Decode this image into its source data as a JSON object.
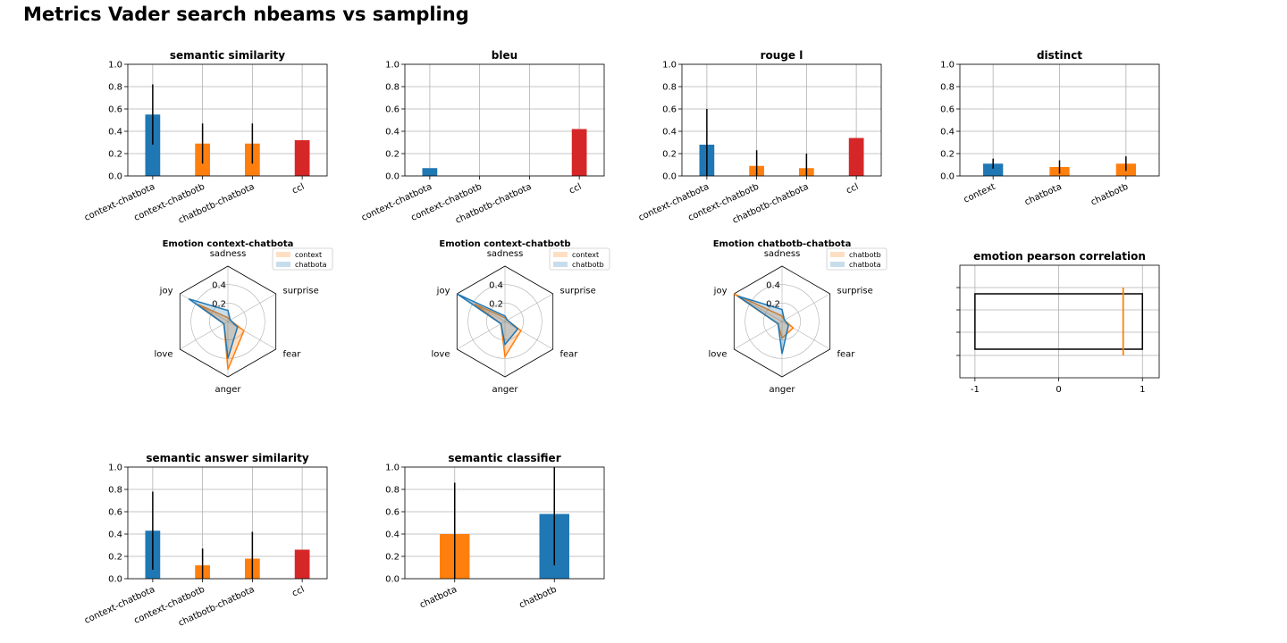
{
  "page": {
    "title": "Metrics Vader search nbeams vs sampling"
  },
  "colors": {
    "blue": "#1f77b4",
    "orange": "#ff7f0e",
    "red": "#d62728",
    "grid": "#b0b0b0",
    "axis": "#000000"
  },
  "chart_data": [
    {
      "id": "semantic-similarity",
      "type": "bar",
      "title": "semantic similarity",
      "categories": [
        "context-chatbota",
        "context-chatbotb",
        "chatbotb-chatbota",
        "ccl"
      ],
      "values": [
        0.55,
        0.29,
        0.29,
        0.32
      ],
      "errors": [
        0.27,
        0.18,
        0.18,
        null
      ],
      "colors": [
        "blue",
        "orange",
        "orange",
        "red"
      ],
      "ylim": [
        0,
        1.0
      ],
      "yticks": [
        0,
        0.2,
        0.4,
        0.6,
        0.8,
        1.0
      ],
      "ytick_labels": [
        "0.0",
        "0.2",
        "0.4",
        "0.6",
        "0.8",
        "1.0"
      ],
      "grid": true
    },
    {
      "id": "bleu",
      "type": "bar",
      "title": "bleu",
      "categories": [
        "context-chatbota",
        "context-chatbotb",
        "chatbotb-chatbota",
        "ccl"
      ],
      "values": [
        0.07,
        0.0,
        0.0,
        0.42
      ],
      "errors": [
        null,
        null,
        null,
        null
      ],
      "colors": [
        "blue",
        "orange",
        "orange",
        "red"
      ],
      "ylim": [
        0,
        1.0
      ],
      "yticks": [
        0,
        0.2,
        0.4,
        0.6,
        0.8,
        1.0
      ],
      "ytick_labels": [
        "0.0",
        "0.2",
        "0.4",
        "0.6",
        "0.8",
        "1.0"
      ],
      "grid": true
    },
    {
      "id": "rouge-l",
      "type": "bar",
      "title": "rouge l",
      "categories": [
        "context-chatbota",
        "context-chatbotb",
        "chatbotb-chatbota",
        "ccl"
      ],
      "values": [
        0.28,
        0.09,
        0.07,
        0.34
      ],
      "errors": [
        0.32,
        0.14,
        0.13,
        null
      ],
      "colors": [
        "blue",
        "orange",
        "orange",
        "red"
      ],
      "ylim": [
        0,
        1.0
      ],
      "yticks": [
        0,
        0.2,
        0.4,
        0.6,
        0.8,
        1.0
      ],
      "ytick_labels": [
        "0.0",
        "0.2",
        "0.4",
        "0.6",
        "0.8",
        "1.0"
      ],
      "grid": true
    },
    {
      "id": "distinct",
      "type": "bar",
      "title": "distinct",
      "categories": [
        "context",
        "chatbota",
        "chatbotb"
      ],
      "values": [
        0.11,
        0.08,
        0.11
      ],
      "errors": [
        0.045,
        0.06,
        0.065
      ],
      "colors": [
        "blue",
        "orange",
        "orange"
      ],
      "ylim": [
        0,
        1.0
      ],
      "yticks": [
        0,
        0.2,
        0.4,
        0.6,
        0.8,
        1.0
      ],
      "ytick_labels": [
        "0.0",
        "0.2",
        "0.4",
        "0.6",
        "0.8",
        "1.0"
      ],
      "grid": true
    },
    {
      "id": "emotion-context-chatbota",
      "type": "radar",
      "title": "Emotion context-chatbota",
      "axes": [
        "sadness",
        "surprise",
        "fear",
        "anger",
        "love",
        "joy"
      ],
      "rmax": 0.6,
      "rticks": [
        0.2,
        0.4
      ],
      "rtick_labels": [
        "0.2",
        "0.4"
      ],
      "series": [
        {
          "name": "context",
          "color": "orange",
          "values": [
            0.04,
            0.03,
            0.2,
            0.52,
            0.05,
            0.37
          ]
        },
        {
          "name": "chatbota",
          "color": "blue",
          "values": [
            0.12,
            0.03,
            0.12,
            0.4,
            0.05,
            0.49
          ]
        }
      ],
      "legend": "upper-right"
    },
    {
      "id": "emotion-context-chatbotb",
      "type": "radar",
      "title": "Emotion context-chatbotb",
      "axes": [
        "sadness",
        "surprise",
        "fear",
        "anger",
        "love",
        "joy"
      ],
      "rmax": 0.6,
      "rticks": [
        0.2,
        0.4
      ],
      "rtick_labels": [
        "0.2",
        "0.4"
      ],
      "series": [
        {
          "name": "context",
          "color": "orange",
          "values": [
            0.04,
            0.03,
            0.2,
            0.38,
            0.05,
            0.38
          ]
        },
        {
          "name": "chatbotb",
          "color": "blue",
          "values": [
            0.06,
            0.03,
            0.16,
            0.25,
            0.05,
            0.6
          ]
        }
      ],
      "legend": "upper-right"
    },
    {
      "id": "emotion-chatbotb-chatbota",
      "type": "radar",
      "title": "Emotion chatbotb-chatbota",
      "axes": [
        "sadness",
        "surprise",
        "fear",
        "anger",
        "love",
        "joy"
      ],
      "rmax": 0.6,
      "rticks": [
        0.2,
        0.4
      ],
      "rtick_labels": [
        "0.2",
        "0.4"
      ],
      "series": [
        {
          "name": "chatbotb",
          "color": "orange",
          "values": [
            0.06,
            0.03,
            0.14,
            0.18,
            0.05,
            0.6
          ]
        },
        {
          "name": "chatbota",
          "color": "blue",
          "values": [
            0.13,
            0.03,
            0.08,
            0.35,
            0.05,
            0.55
          ]
        }
      ],
      "legend": "upper-right"
    },
    {
      "id": "emotion-pearson-correlation",
      "type": "boxplot",
      "title": "emotion pearson correlation",
      "orientation": "horizontal",
      "xlim": [
        -1.18,
        1.2
      ],
      "xticks": [
        -1,
        0,
        1
      ],
      "xtick_labels": [
        "-1",
        "0",
        "1"
      ],
      "box": {
        "q1": -1.0,
        "q3": 1.0,
        "median": 0.77
      },
      "grid": true
    },
    {
      "id": "semantic-answer-similarity",
      "type": "bar",
      "title": "semantic answer similarity",
      "categories": [
        "context-chatbota",
        "context-chatbotb",
        "chatbotb-chatbota",
        "ccl"
      ],
      "values": [
        0.43,
        0.12,
        0.18,
        0.26
      ],
      "errors": [
        0.35,
        0.15,
        0.24,
        null
      ],
      "colors": [
        "blue",
        "orange",
        "orange",
        "red"
      ],
      "ylim": [
        0,
        1.0
      ],
      "yticks": [
        0,
        0.2,
        0.4,
        0.6,
        0.8,
        1.0
      ],
      "ytick_labels": [
        "0.0",
        "0.2",
        "0.4",
        "0.6",
        "0.8",
        "1.0"
      ],
      "grid": true
    },
    {
      "id": "semantic-classifier",
      "type": "bar",
      "title": "semantic classifier",
      "categories": [
        "chatbota",
        "chatbotb"
      ],
      "values": [
        0.4,
        0.58
      ],
      "errors": [
        0.46,
        0.46
      ],
      "colors": [
        "orange",
        "blue"
      ],
      "ylim": [
        0,
        1.0
      ],
      "yticks": [
        0,
        0.2,
        0.4,
        0.6,
        0.8,
        1.0
      ],
      "ytick_labels": [
        "0.0",
        "0.2",
        "0.4",
        "0.6",
        "0.8",
        "1.0"
      ],
      "grid": true
    }
  ]
}
